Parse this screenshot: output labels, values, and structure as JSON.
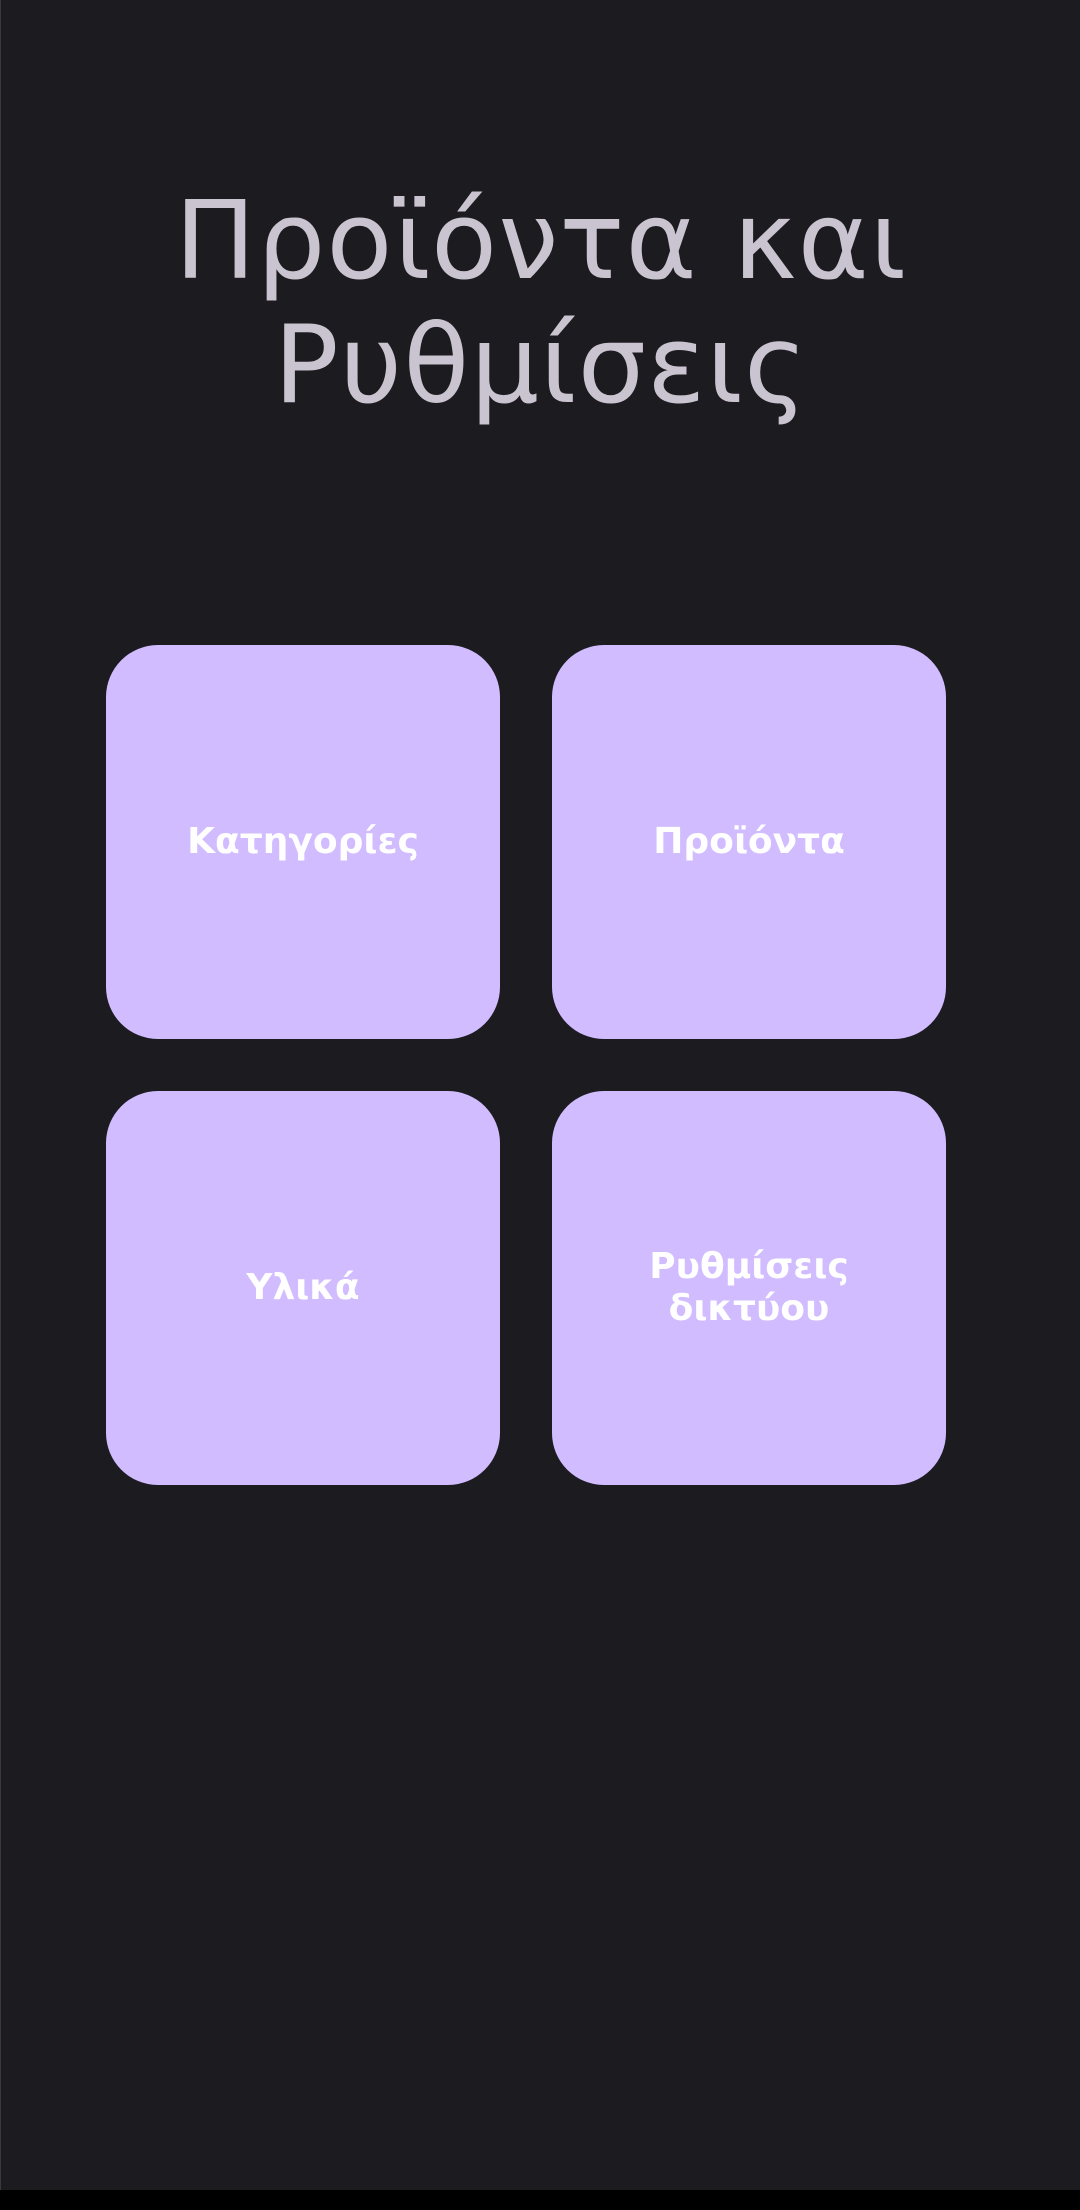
{
  "screen": {
    "title_line1": "Προϊόντα και",
    "title_line2": "Ρυθμίσεις"
  },
  "tiles": [
    {
      "id": "categories",
      "label": "Κατηγορίες"
    },
    {
      "id": "products",
      "label": "Προϊόντα"
    },
    {
      "id": "materials",
      "label": "Υλικά"
    },
    {
      "id": "network_settings",
      "label": "Ρυθμίσεις\nδικτύου"
    }
  ],
  "colors": {
    "background": "#1c1b1f",
    "title_text": "#cac4d0",
    "tile_background": "#d0bcff",
    "tile_text": "#ffffff"
  }
}
